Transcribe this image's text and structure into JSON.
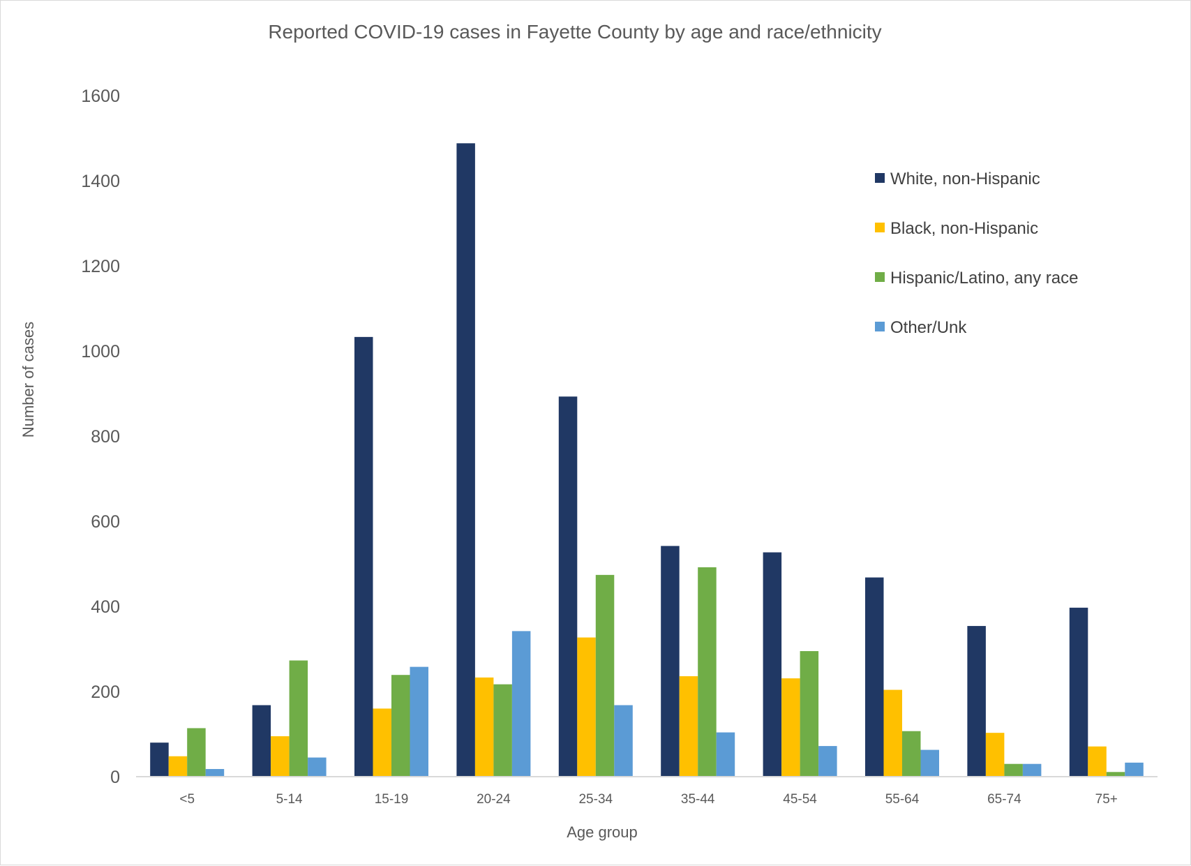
{
  "chart_data": {
    "type": "bar",
    "title": "Reported COVID-19 cases in Fayette County by age and race/ethnicity",
    "xlabel": "Age group",
    "ylabel": "Number of cases",
    "ylim": [
      0,
      1600
    ],
    "yticks": [
      0,
      200,
      400,
      600,
      800,
      1000,
      1200,
      1400,
      1600
    ],
    "grid": false,
    "legend_position": "top-right",
    "categories": [
      "<5",
      "5-14",
      "15-19",
      "20-24",
      "25-34",
      "35-44",
      "45-54",
      "55-64",
      "65-74",
      "75+"
    ],
    "series": [
      {
        "name": "White, non-Hispanic",
        "color": "#203864",
        "values": [
          80,
          168,
          1033,
          1488,
          893,
          542,
          527,
          468,
          354,
          397
        ]
      },
      {
        "name": "Black, non-Hispanic",
        "color": "#ffc000",
        "values": [
          48,
          95,
          160,
          233,
          327,
          236,
          231,
          204,
          103,
          71
        ]
      },
      {
        "name": "Hispanic/Latino, any race",
        "color": "#70ad47",
        "values": [
          114,
          273,
          239,
          217,
          474,
          492,
          295,
          107,
          30,
          11
        ]
      },
      {
        "name": "Other/Unk",
        "color": "#5b9bd5",
        "values": [
          18,
          45,
          258,
          342,
          168,
          104,
          72,
          63,
          30,
          33
        ]
      }
    ]
  }
}
